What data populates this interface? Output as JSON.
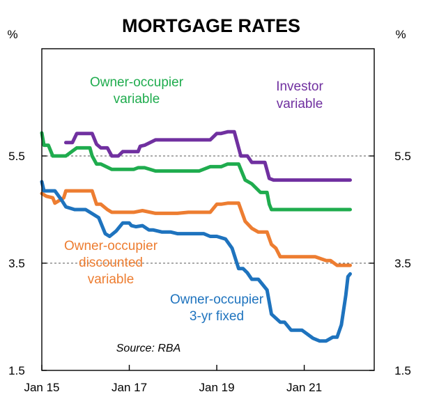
{
  "chart_data": {
    "type": "line",
    "title": "MORTGAGE RATES",
    "unit_left": "%",
    "unit_right": "%",
    "source": "Source: RBA",
    "ylim": [
      1.5,
      7.5
    ],
    "yticks": [
      {
        "value": 1.5,
        "label": "1.5"
      },
      {
        "value": 3.5,
        "label": "3.5"
      },
      {
        "value": 5.5,
        "label": "5.5"
      }
    ],
    "gridlines": [
      3.5,
      5.5
    ],
    "xlim": [
      2015.0,
      2022.6
    ],
    "xticks": [
      {
        "value": 2015.0,
        "label": "Jan 15"
      },
      {
        "value": 2017.0,
        "label": "Jan 17"
      },
      {
        "value": 2019.0,
        "label": "Jan 19"
      },
      {
        "value": 2021.0,
        "label": "Jan 21"
      }
    ],
    "series": [
      {
        "name": "Investor variable",
        "label_lines": [
          "Investor",
          "variable"
        ],
        "color": "#7030a0",
        "x": [
          2015.55,
          2015.7,
          2015.8,
          2015.9,
          2016.15,
          2016.25,
          2016.35,
          2016.5,
          2016.6,
          2016.75,
          2016.85,
          2017.0,
          2017.1,
          2017.2,
          2017.25,
          2017.35,
          2017.6,
          2017.85,
          2018.1,
          2018.35,
          2018.6,
          2018.85,
          2019.0,
          2019.1,
          2019.25,
          2019.4,
          2019.55,
          2019.7,
          2019.8,
          2019.95,
          2020.1,
          2020.2,
          2020.3,
          2021.0,
          2021.5,
          2022.05
        ],
        "y": [
          5.75,
          5.75,
          5.92,
          5.92,
          5.92,
          5.72,
          5.65,
          5.65,
          5.5,
          5.5,
          5.58,
          5.58,
          5.58,
          5.58,
          5.68,
          5.7,
          5.8,
          5.8,
          5.8,
          5.8,
          5.8,
          5.8,
          5.92,
          5.92,
          5.95,
          5.95,
          5.5,
          5.5,
          5.38,
          5.38,
          5.38,
          5.08,
          5.05,
          5.05,
          5.05,
          5.05
        ]
      },
      {
        "name": "Owner-occupier variable",
        "label_lines": [
          "Owner-occupier",
          "variable"
        ],
        "color": "#1fac4e",
        "x": [
          2015.0,
          2015.05,
          2015.15,
          2015.25,
          2015.5,
          2015.55,
          2015.8,
          2016.1,
          2016.15,
          2016.25,
          2016.35,
          2016.6,
          2016.75,
          2017.0,
          2017.05,
          2017.1,
          2017.2,
          2017.35,
          2017.6,
          2017.85,
          2018.1,
          2018.35,
          2018.6,
          2018.85,
          2019.0,
          2019.1,
          2019.25,
          2019.4,
          2019.5,
          2019.65,
          2019.8,
          2020.0,
          2020.15,
          2020.2,
          2020.25,
          2020.4,
          2020.6,
          2020.85,
          2021.0,
          2021.5,
          2022.05
        ],
        "y": [
          5.93,
          5.7,
          5.7,
          5.5,
          5.5,
          5.5,
          5.65,
          5.65,
          5.5,
          5.35,
          5.35,
          5.25,
          5.25,
          5.25,
          5.25,
          5.25,
          5.28,
          5.28,
          5.22,
          5.22,
          5.22,
          5.22,
          5.22,
          5.3,
          5.3,
          5.3,
          5.35,
          5.35,
          5.35,
          5.05,
          4.98,
          4.82,
          4.82,
          4.6,
          4.5,
          4.5,
          4.5,
          4.5,
          4.5,
          4.5,
          4.5
        ]
      },
      {
        "name": "Owner-occupier discounted variable",
        "label_lines": [
          "Owner-occupier",
          "discounted",
          "variable"
        ],
        "color": "#ed7d31",
        "x": [
          2015.0,
          2015.1,
          2015.25,
          2015.3,
          2015.5,
          2015.55,
          2015.8,
          2016.15,
          2016.25,
          2016.35,
          2016.5,
          2016.6,
          2016.75,
          2017.0,
          2017.1,
          2017.3,
          2017.6,
          2017.85,
          2018.1,
          2018.35,
          2018.6,
          2018.85,
          2019.0,
          2019.1,
          2019.25,
          2019.4,
          2019.5,
          2019.65,
          2019.8,
          2019.95,
          2020.15,
          2020.25,
          2020.35,
          2020.45,
          2020.6,
          2021.0,
          2021.25,
          2021.5,
          2021.6,
          2021.75,
          2022.05
        ],
        "y": [
          4.8,
          4.75,
          4.72,
          4.62,
          4.72,
          4.85,
          4.85,
          4.85,
          4.6,
          4.6,
          4.5,
          4.45,
          4.45,
          4.45,
          4.45,
          4.48,
          4.43,
          4.43,
          4.43,
          4.45,
          4.45,
          4.45,
          4.6,
          4.6,
          4.62,
          4.62,
          4.62,
          4.28,
          4.15,
          4.08,
          4.08,
          3.85,
          3.78,
          3.62,
          3.62,
          3.62,
          3.62,
          3.55,
          3.55,
          3.46,
          3.46
        ]
      },
      {
        "name": "Owner-occupier 3-yr fixed",
        "label_lines": [
          "Owner-occupier",
          "3-yr fixed"
        ],
        "color": "#1e73be",
        "x": [
          2015.0,
          2015.05,
          2015.3,
          2015.45,
          2015.55,
          2015.75,
          2016.0,
          2016.3,
          2016.45,
          2016.55,
          2016.7,
          2016.85,
          2017.0,
          2017.05,
          2017.15,
          2017.3,
          2017.45,
          2017.55,
          2017.75,
          2017.95,
          2018.1,
          2018.35,
          2018.5,
          2018.7,
          2018.85,
          2019.0,
          2019.2,
          2019.35,
          2019.5,
          2019.6,
          2019.7,
          2019.8,
          2019.95,
          2020.15,
          2020.25,
          2020.45,
          2020.55,
          2020.7,
          2020.95,
          2021.0,
          2021.2,
          2021.35,
          2021.5,
          2021.65,
          2021.75,
          2021.85,
          2021.95,
          2022.0,
          2022.05
        ],
        "y": [
          5.02,
          4.85,
          4.85,
          4.68,
          4.55,
          4.5,
          4.5,
          4.35,
          4.05,
          4.0,
          4.1,
          4.25,
          4.25,
          4.2,
          4.18,
          4.2,
          4.12,
          4.12,
          4.08,
          4.08,
          4.05,
          4.05,
          4.05,
          4.05,
          4.0,
          4.0,
          3.95,
          3.78,
          3.4,
          3.4,
          3.32,
          3.2,
          3.2,
          3.0,
          2.55,
          2.4,
          2.4,
          2.25,
          2.25,
          2.22,
          2.1,
          2.05,
          2.05,
          2.12,
          2.12,
          2.35,
          2.9,
          3.25,
          3.3
        ]
      }
    ]
  }
}
